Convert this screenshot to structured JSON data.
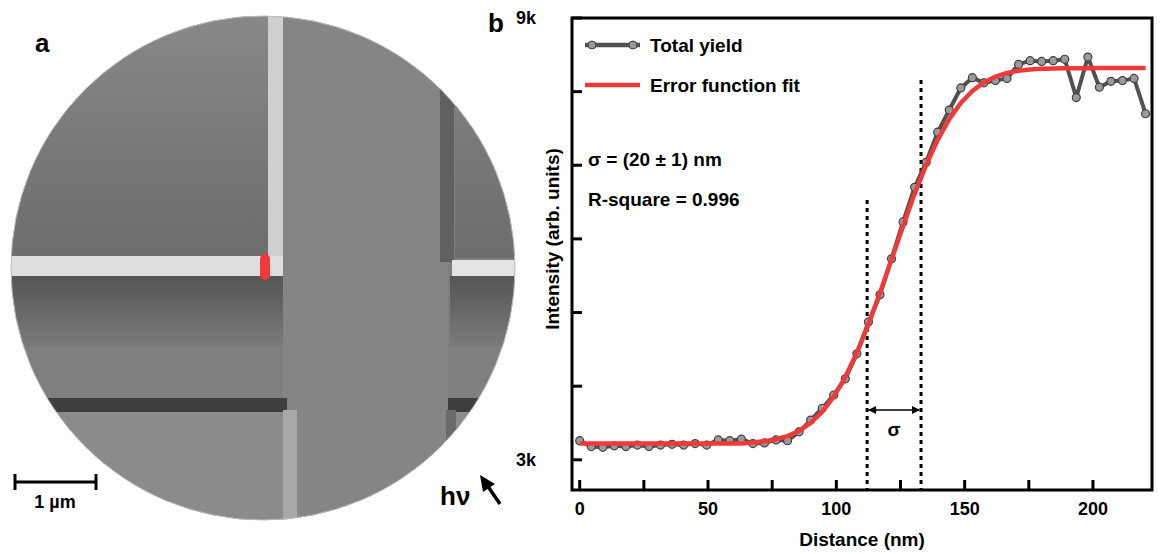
{
  "panel_a": {
    "label": "a",
    "scale_bar": "1 µm",
    "photon": "hν"
  },
  "chart_data": {
    "type": "line",
    "panel_label": "b",
    "x_label": "Distance (nm)",
    "y_label": "Intensity (arb. units)",
    "xlim": [
      -3,
      223
    ],
    "ylim": [
      2590,
      9000
    ],
    "xticks": [
      0,
      {
        "value": 25,
        "label": null
      },
      50,
      {
        "value": 75,
        "label": null
      },
      100,
      {
        "value": 125,
        "label": null
      },
      150,
      {
        "value": 175,
        "label": null
      },
      200
    ],
    "yticks": [
      {
        "value": 3000,
        "label": "3k"
      },
      {
        "value": 4000,
        "label": null
      },
      {
        "value": 5000,
        "label": null
      },
      {
        "value": 6000,
        "label": null
      },
      {
        "value": 7000,
        "label": null
      },
      {
        "value": 8000,
        "label": null
      },
      {
        "value": 9000,
        "label": "9k"
      }
    ],
    "legend": "upper left",
    "x": [
      0,
      4.5,
      9,
      13.5,
      18,
      22.5,
      27,
      31.5,
      36,
      40.5,
      45,
      49.5,
      54,
      58.5,
      63,
      67.5,
      72,
      76.5,
      81,
      85.5,
      90,
      94.5,
      99,
      103.5,
      108,
      112.5,
      117,
      121.5,
      126,
      130.5,
      135,
      139.5,
      144,
      148.5,
      153,
      157.5,
      162,
      166.5,
      171,
      175.5,
      180,
      184.5,
      189,
      193.5,
      198,
      202.5,
      207,
      211.5,
      216,
      220.5
    ],
    "series": [
      {
        "name": "Total yield",
        "color": "#505050",
        "marker": "circle",
        "line_style": "solid",
        "values": [
          3260,
          3180,
          3170,
          3190,
          3180,
          3200,
          3180,
          3200,
          3210,
          3200,
          3220,
          3200,
          3270,
          3260,
          3280,
          3220,
          3230,
          3270,
          3260,
          3380,
          3540,
          3700,
          3880,
          4100,
          4440,
          4870,
          5240,
          5730,
          6230,
          6700,
          7040,
          7450,
          7750,
          8050,
          8190,
          8120,
          8150,
          8180,
          8370,
          8420,
          8410,
          8420,
          8440,
          7920,
          8470,
          8060,
          8140,
          8150,
          8180,
          7700
        ]
      },
      {
        "name": "Error function fit",
        "color": "#f03a3a",
        "marker": "none",
        "line_style": "solid",
        "values": [
          3220,
          3220,
          3220,
          3220,
          3220,
          3220,
          3220,
          3220,
          3220,
          3220,
          3220,
          3220,
          3220,
          3220,
          3220,
          3235,
          3251,
          3279,
          3322,
          3393,
          3500,
          3652,
          3858,
          4124,
          4454,
          4837,
          5265,
          5719,
          6173,
          6612,
          7004,
          7346,
          7626,
          7846,
          8009,
          8126,
          8203,
          8254,
          8284,
          8302,
          8311,
          8315,
          8317,
          8318,
          8319,
          8320,
          8320,
          8320,
          8320,
          8320
        ]
      }
    ],
    "annotations": [
      {
        "text": "σ = (20 ± 1) nm"
      },
      {
        "text": "R-square = 0.996"
      },
      {
        "text": "σ",
        "x": [
          112,
          133
        ]
      }
    ]
  }
}
